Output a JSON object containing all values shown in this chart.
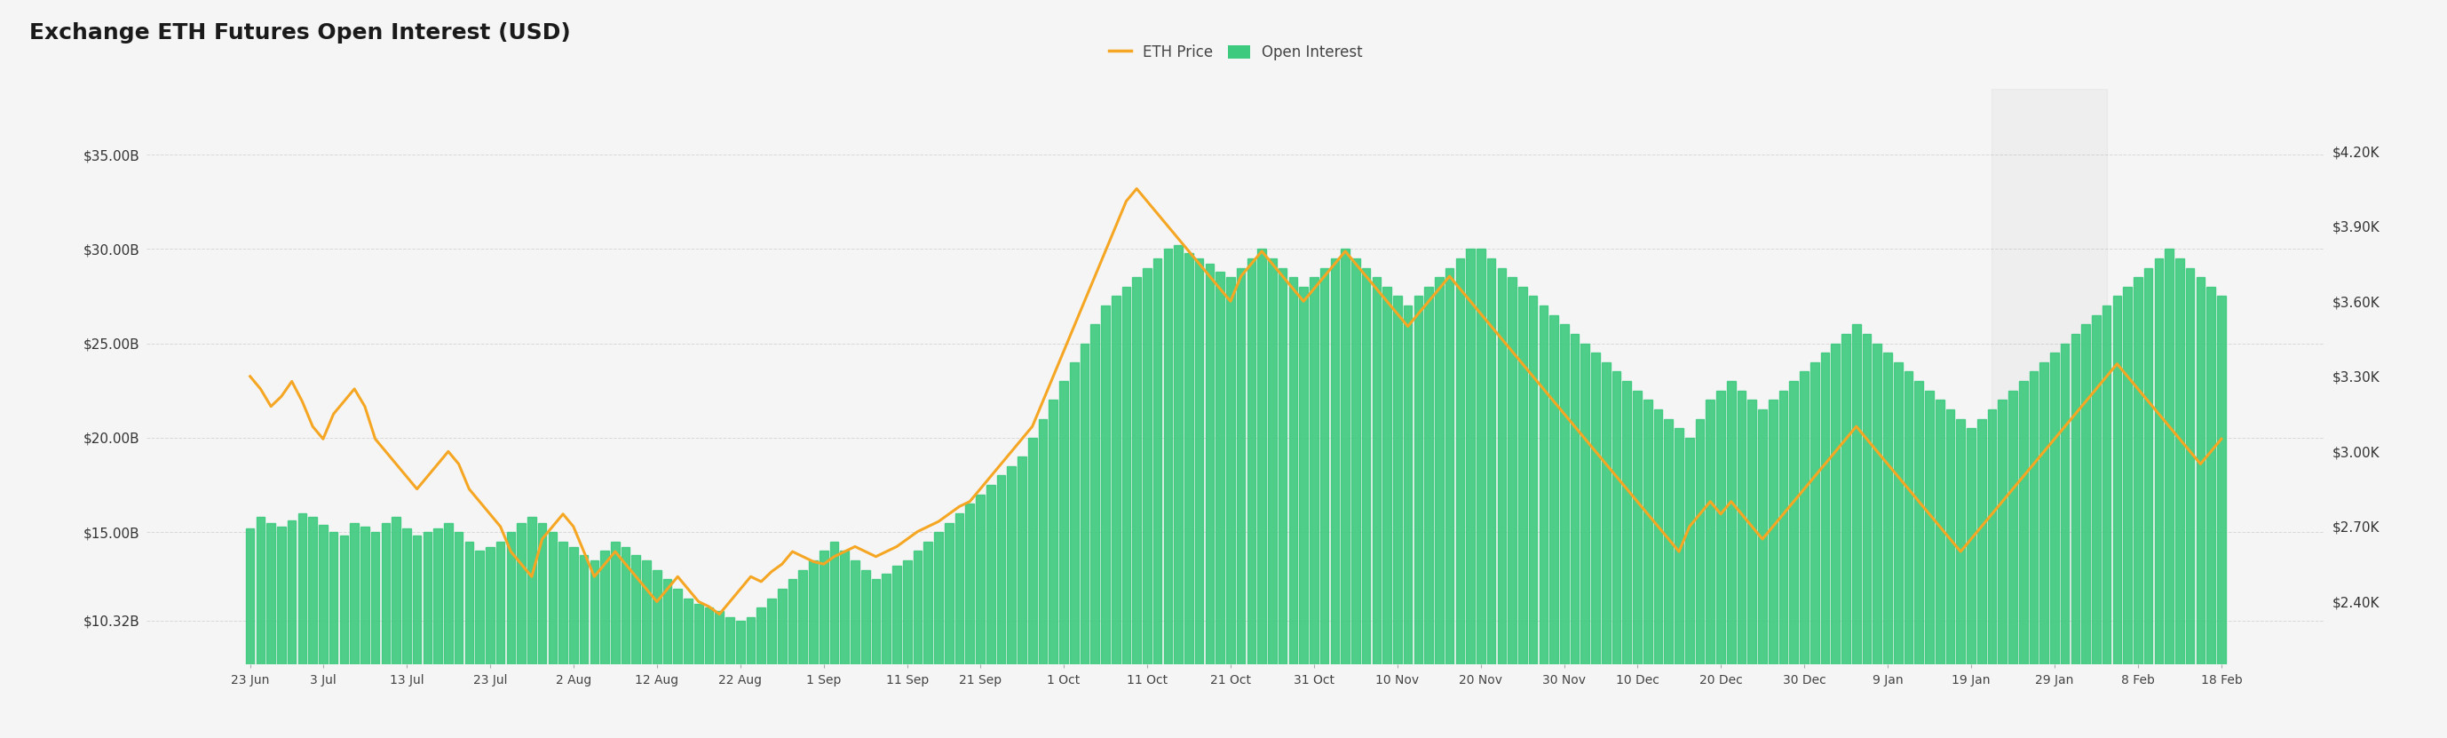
{
  "title": "Exchange ETH Futures Open Interest (USD)",
  "background_color": "#f5f5f5",
  "plot_bg_color": "#f5f5f5",
  "bar_color": "#3dca7e",
  "line_color": "#f5a623",
  "grid_color": "#cccccc",
  "legend_labels": [
    "ETH Price",
    "Open Interest"
  ],
  "legend_colors": [
    "#f5a623",
    "#3dca7e"
  ],
  "x_labels": [
    "23 Jun",
    "3 Jul",
    "13 Jul",
    "23 Jul",
    "2 Aug",
    "12 Aug",
    "22 Aug",
    "1 Sep",
    "11 Sep",
    "21 Sep",
    "1 Oct",
    "11 Oct",
    "21 Oct",
    "31 Oct",
    "10 Nov",
    "20 Nov",
    "30 Nov",
    "10 Dec",
    "20 Dec",
    "30 Dec",
    "9 Jan",
    "19 Jan",
    "29 Jan",
    "8 Feb",
    "18 Feb"
  ],
  "y_left_labels": [
    "$10.32B",
    "$15.00B",
    "$20.00B",
    "$25.00B",
    "$30.00B",
    "$35.00B"
  ],
  "y_left_values": [
    10.32,
    15,
    20,
    25,
    30,
    35
  ],
  "y_right_labels": [
    "$2.40K",
    "$2.70K",
    "$3.00K",
    "$3.30K",
    "$3.60K",
    "$3.90K",
    "$4.20K"
  ],
  "y_right_values": [
    2400,
    2700,
    3000,
    3300,
    3600,
    3900,
    4200
  ],
  "ylim_left": [
    8.0,
    38.5
  ],
  "ylim_right": [
    2150,
    4450
  ],
  "bar_data": [
    15.2,
    15.8,
    15.5,
    15.3,
    15.6,
    16.0,
    15.8,
    15.4,
    15.0,
    14.8,
    15.5,
    15.3,
    15.0,
    15.5,
    15.8,
    15.2,
    14.8,
    15.0,
    15.2,
    15.5,
    15.0,
    14.5,
    14.0,
    14.2,
    14.5,
    15.0,
    15.5,
    15.8,
    15.5,
    15.0,
    14.5,
    14.2,
    13.8,
    13.5,
    14.0,
    14.5,
    14.2,
    13.8,
    13.5,
    13.0,
    12.5,
    12.0,
    11.5,
    11.2,
    11.0,
    10.8,
    10.5,
    10.32,
    10.5,
    11.0,
    11.5,
    12.0,
    12.5,
    13.0,
    13.5,
    14.0,
    14.5,
    14.0,
    13.5,
    13.0,
    12.5,
    12.8,
    13.2,
    13.5,
    14.0,
    14.5,
    15.0,
    15.5,
    16.0,
    16.5,
    17.0,
    17.5,
    18.0,
    18.5,
    19.0,
    20.0,
    21.0,
    22.0,
    23.0,
    24.0,
    25.0,
    26.0,
    27.0,
    27.5,
    28.0,
    28.5,
    29.0,
    29.5,
    30.0,
    30.2,
    29.8,
    29.5,
    29.2,
    28.8,
    28.5,
    29.0,
    29.5,
    30.0,
    29.5,
    29.0,
    28.5,
    28.0,
    28.5,
    29.0,
    29.5,
    30.0,
    29.5,
    29.0,
    28.5,
    28.0,
    27.5,
    27.0,
    27.5,
    28.0,
    28.5,
    29.0,
    29.5,
    30.0,
    30.0,
    29.5,
    29.0,
    28.5,
    28.0,
    27.5,
    27.0,
    26.5,
    26.0,
    25.5,
    25.0,
    24.5,
    24.0,
    23.5,
    23.0,
    22.5,
    22.0,
    21.5,
    21.0,
    20.5,
    20.0,
    21.0,
    22.0,
    22.5,
    23.0,
    22.5,
    22.0,
    21.5,
    22.0,
    22.5,
    23.0,
    23.5,
    24.0,
    24.5,
    25.0,
    25.5,
    26.0,
    25.5,
    25.0,
    24.5,
    24.0,
    23.5,
    23.0,
    22.5,
    22.0,
    21.5,
    21.0,
    20.5,
    21.0,
    21.5,
    22.0,
    22.5,
    23.0,
    23.5,
    24.0,
    24.5,
    25.0,
    25.5,
    26.0,
    26.5,
    27.0,
    27.5,
    28.0,
    28.5,
    29.0,
    29.5,
    30.0,
    29.5,
    29.0,
    28.5,
    28.0,
    27.5
  ],
  "price_data": [
    3300,
    3250,
    3180,
    3220,
    3280,
    3200,
    3100,
    3050,
    3150,
    3200,
    3250,
    3180,
    3050,
    3000,
    2950,
    2900,
    2850,
    2900,
    2950,
    3000,
    2950,
    2850,
    2800,
    2750,
    2700,
    2600,
    2550,
    2500,
    2650,
    2700,
    2750,
    2700,
    2600,
    2500,
    2550,
    2600,
    2550,
    2500,
    2450,
    2400,
    2450,
    2500,
    2450,
    2400,
    2380,
    2350,
    2400,
    2450,
    2500,
    2480,
    2520,
    2550,
    2600,
    2580,
    2560,
    2550,
    2580,
    2600,
    2620,
    2600,
    2580,
    2600,
    2620,
    2650,
    2680,
    2700,
    2720,
    2750,
    2780,
    2800,
    2850,
    2900,
    2950,
    3000,
    3050,
    3100,
    3200,
    3300,
    3400,
    3500,
    3600,
    3700,
    3800,
    3900,
    4000,
    4050,
    4000,
    3950,
    3900,
    3850,
    3800,
    3750,
    3700,
    3650,
    3600,
    3700,
    3750,
    3800,
    3750,
    3700,
    3650,
    3600,
    3650,
    3700,
    3750,
    3800,
    3750,
    3700,
    3650,
    3600,
    3550,
    3500,
    3550,
    3600,
    3650,
    3700,
    3650,
    3600,
    3550,
    3500,
    3450,
    3400,
    3350,
    3300,
    3250,
    3200,
    3150,
    3100,
    3050,
    3000,
    2950,
    2900,
    2850,
    2800,
    2750,
    2700,
    2650,
    2600,
    2700,
    2750,
    2800,
    2750,
    2800,
    2750,
    2700,
    2650,
    2700,
    2750,
    2800,
    2850,
    2900,
    2950,
    3000,
    3050,
    3100,
    3050,
    3000,
    2950,
    2900,
    2850,
    2800,
    2750,
    2700,
    2650,
    2600,
    2650,
    2700,
    2750,
    2800,
    2850,
    2900,
    2950,
    3000,
    3050,
    3100,
    3150,
    3200,
    3250,
    3300,
    3350,
    3300,
    3250,
    3200,
    3150,
    3100,
    3050,
    3000,
    2950,
    3000,
    3050
  ],
  "title_fontsize": 18,
  "tick_fontsize": 11,
  "legend_fontsize": 12
}
